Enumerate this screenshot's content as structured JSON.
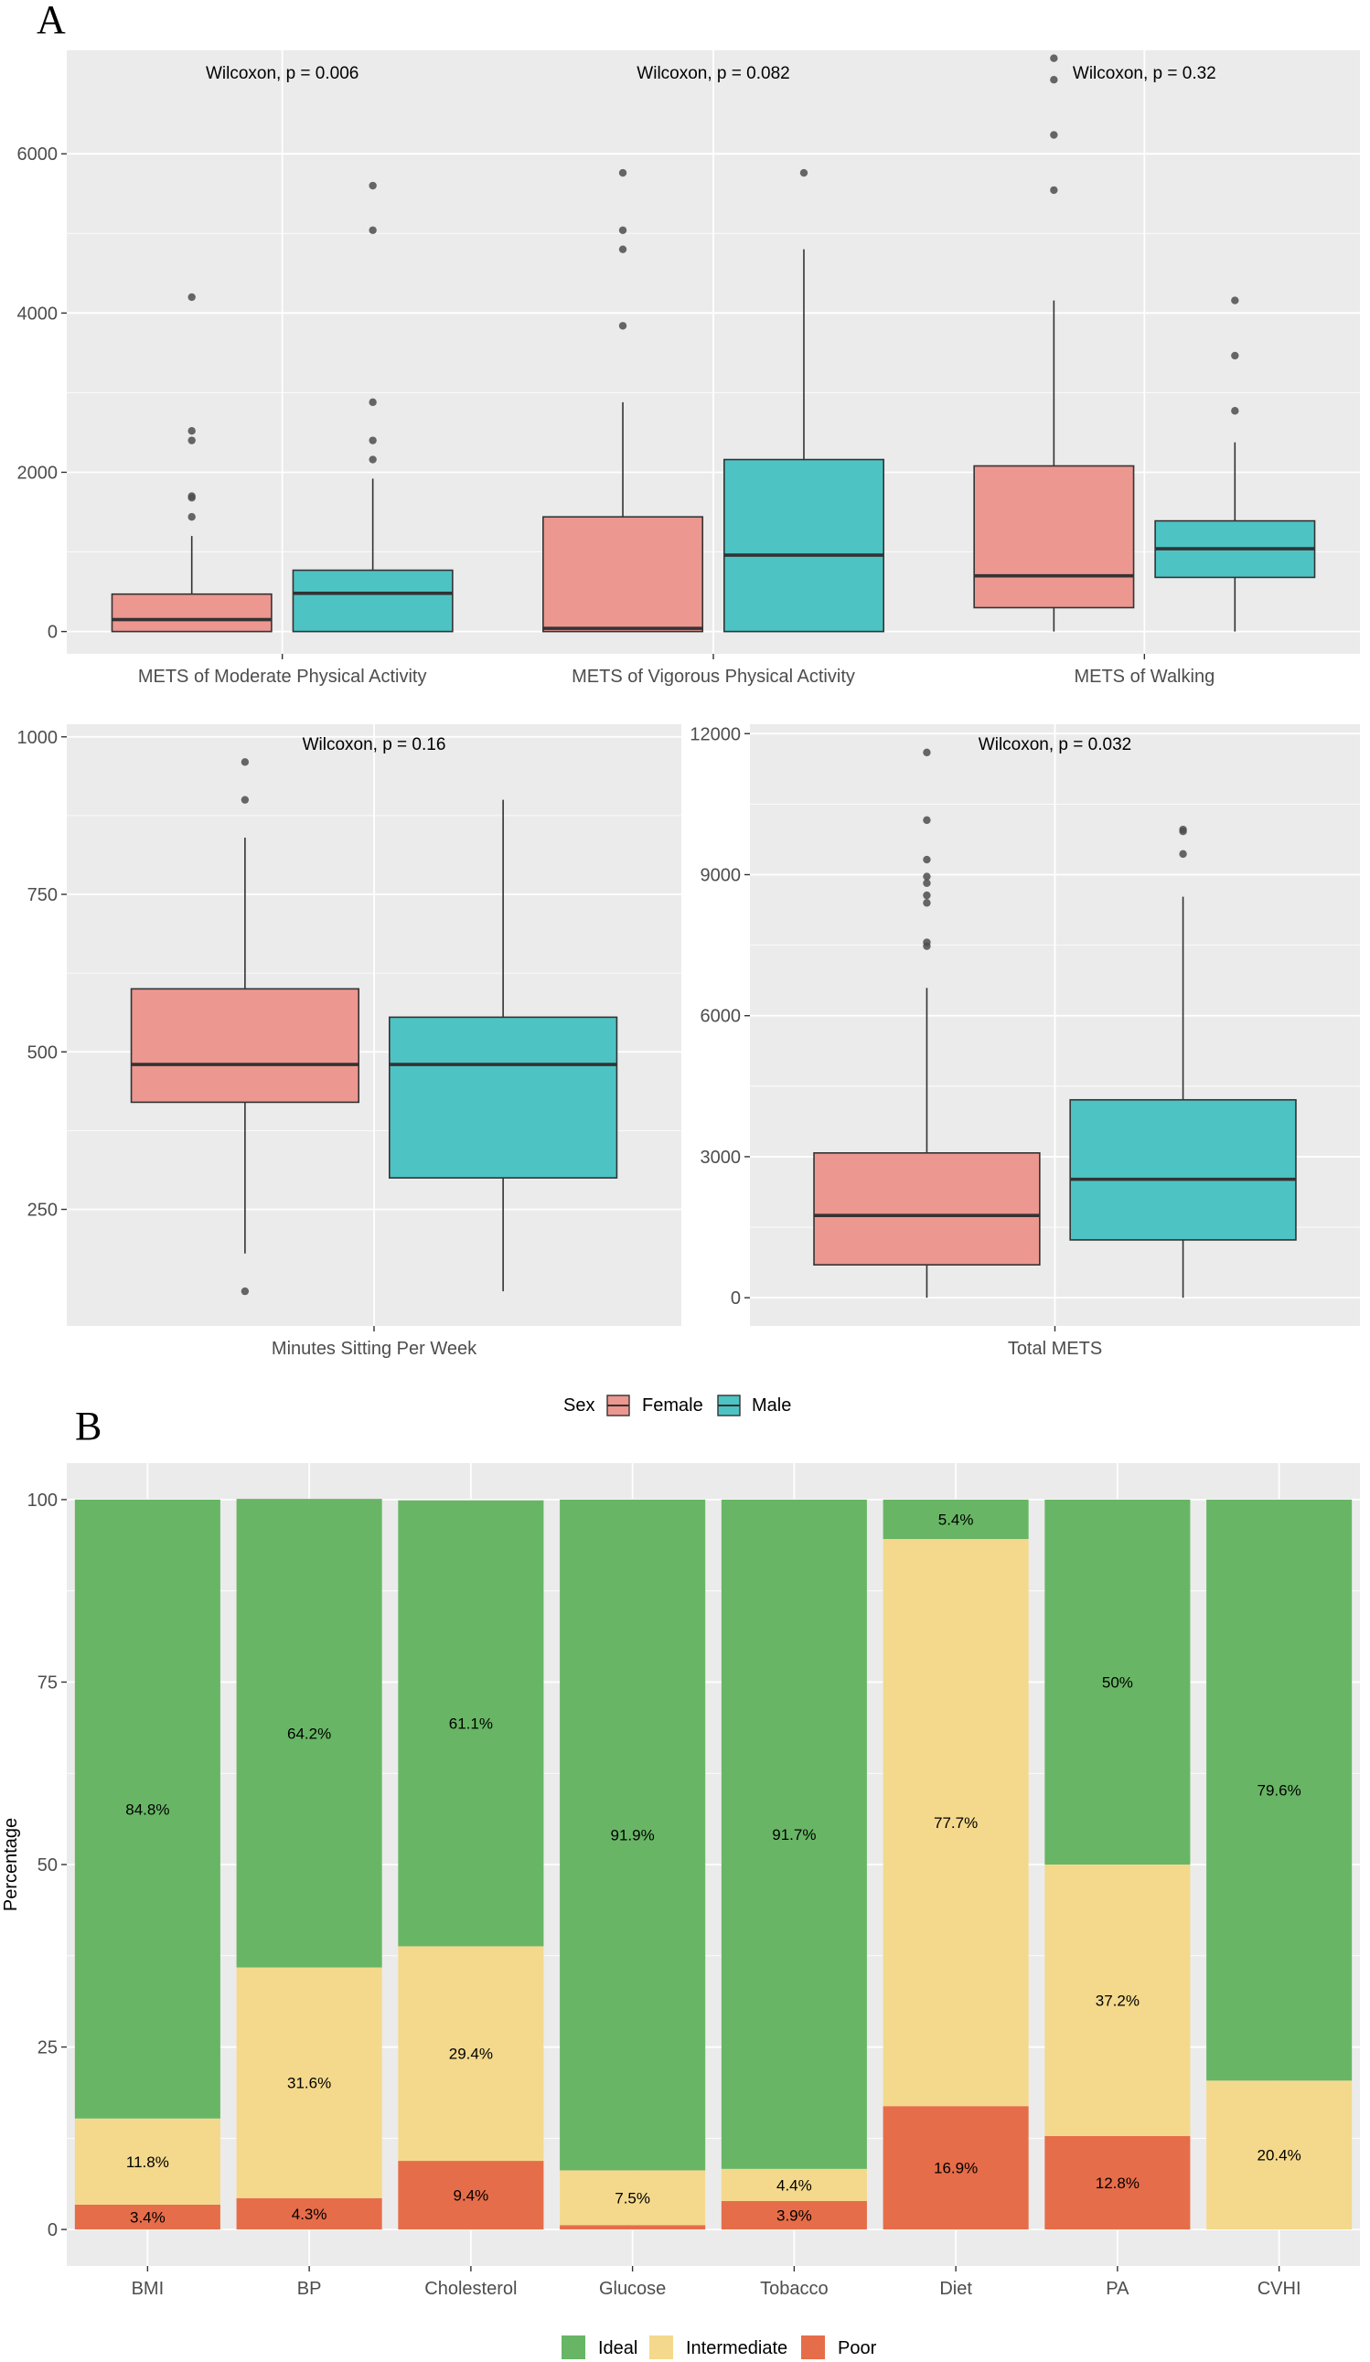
{
  "panel_labels": {
    "a": "A",
    "b": "B"
  },
  "colors": {
    "panel_bg": "#EBEBEB",
    "grid": "#FFFFFF",
    "female": "#EC9790",
    "male": "#4EC3C4",
    "ideal": "#68B665",
    "intermediate": "#F4D98C",
    "poor": "#E66D49",
    "outlier": "#4D4D4D"
  },
  "legend_sex": {
    "title": "Sex",
    "labels": [
      "Female",
      "Male"
    ]
  },
  "legend_status": {
    "labels": [
      "Ideal",
      "Intermediate",
      "Poor"
    ]
  },
  "chart_data": [
    {
      "type": "boxplot",
      "title": "",
      "xlabel": "",
      "ylabel": "",
      "ylim": [
        -280,
        7300
      ],
      "yticks": [
        0,
        2000,
        4000,
        6000
      ],
      "groups": [
        "Female",
        "Male"
      ],
      "categories": [
        {
          "name": "METS of Moderate Physical Activity",
          "annotation": "Wilcoxon, p = 0.006",
          "boxes": [
            {
              "group": "Female",
              "lower": 0,
              "q1": 0,
              "median": 150,
              "q3": 470,
              "upper": 1200,
              "outliers": [
                1440,
                1680,
                1700,
                2400,
                2520,
                4200
              ]
            },
            {
              "group": "Male",
              "lower": 0,
              "q1": 0,
              "median": 480,
              "q3": 770,
              "upper": 1920,
              "outliers": [
                2160,
                2400,
                2880,
                5040,
                5600
              ]
            }
          ]
        },
        {
          "name": "METS of Vigorous Physical Activity",
          "annotation": "Wilcoxon, p = 0.082",
          "boxes": [
            {
              "group": "Female",
              "lower": 0,
              "q1": 0,
              "median": 40,
              "q3": 1440,
              "upper": 2880,
              "outliers": [
                3840,
                4800,
                5040,
                5760
              ]
            },
            {
              "group": "Male",
              "lower": 0,
              "q1": 0,
              "median": 960,
              "q3": 2160,
              "upper": 4800,
              "outliers": [
                5760
              ]
            }
          ]
        },
        {
          "name": "METS of Walking",
          "annotation": "Wilcoxon, p = 0.32",
          "boxes": [
            {
              "group": "Female",
              "lower": 0,
              "q1": 300,
              "median": 700,
              "q3": 2080,
              "upper": 4158,
              "outliers": [
                5544,
                6237,
                6930,
                7200
              ]
            },
            {
              "group": "Male",
              "lower": 0,
              "q1": 680,
              "median": 1040,
              "q3": 1390,
              "upper": 2376,
              "outliers": [
                2772,
                3465,
                4158
              ]
            }
          ]
        }
      ]
    },
    {
      "type": "boxplot",
      "title": "",
      "xlabel": "",
      "ylabel": "",
      "ylim": [
        65,
        1020
      ],
      "yticks": [
        250,
        500,
        750,
        1000
      ],
      "groups": [
        "Female",
        "Male"
      ],
      "categories": [
        {
          "name": "Minutes Sitting Per Week",
          "annotation": "Wilcoxon, p = 0.16",
          "boxes": [
            {
              "group": "Female",
              "lower": 180,
              "q1": 420,
              "median": 480,
              "q3": 600,
              "upper": 840,
              "outliers": [
                120,
                900,
                960
              ]
            },
            {
              "group": "Male",
              "lower": 120,
              "q1": 300,
              "median": 480,
              "q3": 555,
              "upper": 900,
              "outliers": []
            }
          ]
        }
      ]
    },
    {
      "type": "boxplot",
      "title": "",
      "xlabel": "",
      "ylabel": "",
      "ylim": [
        -600,
        12200
      ],
      "yticks": [
        0,
        3000,
        6000,
        9000,
        12000
      ],
      "groups": [
        "Female",
        "Male"
      ],
      "categories": [
        {
          "name": "Total METS",
          "annotation": "Wilcoxon, p = 0.032",
          "boxes": [
            {
              "group": "Female",
              "lower": 0,
              "q1": 700,
              "median": 1750,
              "q3": 3080,
              "upper": 6590,
              "outliers": [
                7480,
                7560,
                8400,
                8560,
                8820,
                8960,
                9320,
                10160,
                11600
              ]
            },
            {
              "group": "Male",
              "lower": 0,
              "q1": 1230,
              "median": 2520,
              "q3": 4210,
              "upper": 8530,
              "outliers": [
                9440,
                9920,
                9960
              ]
            }
          ]
        }
      ]
    },
    {
      "type": "stacked-bar",
      "title": "",
      "xlabel": "",
      "ylabel": "Percentage",
      "ylim": [
        -5,
        105
      ],
      "yticks": [
        0,
        25,
        50,
        75,
        100
      ],
      "categories": [
        "BMI",
        "BP",
        "Cholesterol",
        "Glucose",
        "Tobacco",
        "Diet",
        "PA",
        "CVHI"
      ],
      "series": [
        {
          "name": "Poor",
          "values": [
            3.4,
            4.3,
            9.4,
            0.6,
            3.9,
            16.9,
            12.8,
            0
          ],
          "labels": [
            "3.4%",
            "4.3%",
            "9.4%",
            "",
            "3.9%",
            "16.9%",
            "12.8%",
            ""
          ]
        },
        {
          "name": "Intermediate",
          "values": [
            11.8,
            31.6,
            29.4,
            7.5,
            4.4,
            77.7,
            37.2,
            20.4
          ],
          "labels": [
            "11.8%",
            "31.6%",
            "29.4%",
            "7.5%",
            "4.4%",
            "77.7%",
            "37.2%",
            "20.4%"
          ]
        },
        {
          "name": "Ideal",
          "values": [
            84.8,
            64.2,
            61.1,
            91.9,
            91.7,
            5.4,
            50,
            79.6
          ],
          "labels": [
            "84.8%",
            "64.2%",
            "61.1%",
            "91.9%",
            "91.7%",
            "5.4%",
            "50%",
            "79.6%"
          ]
        }
      ]
    }
  ]
}
